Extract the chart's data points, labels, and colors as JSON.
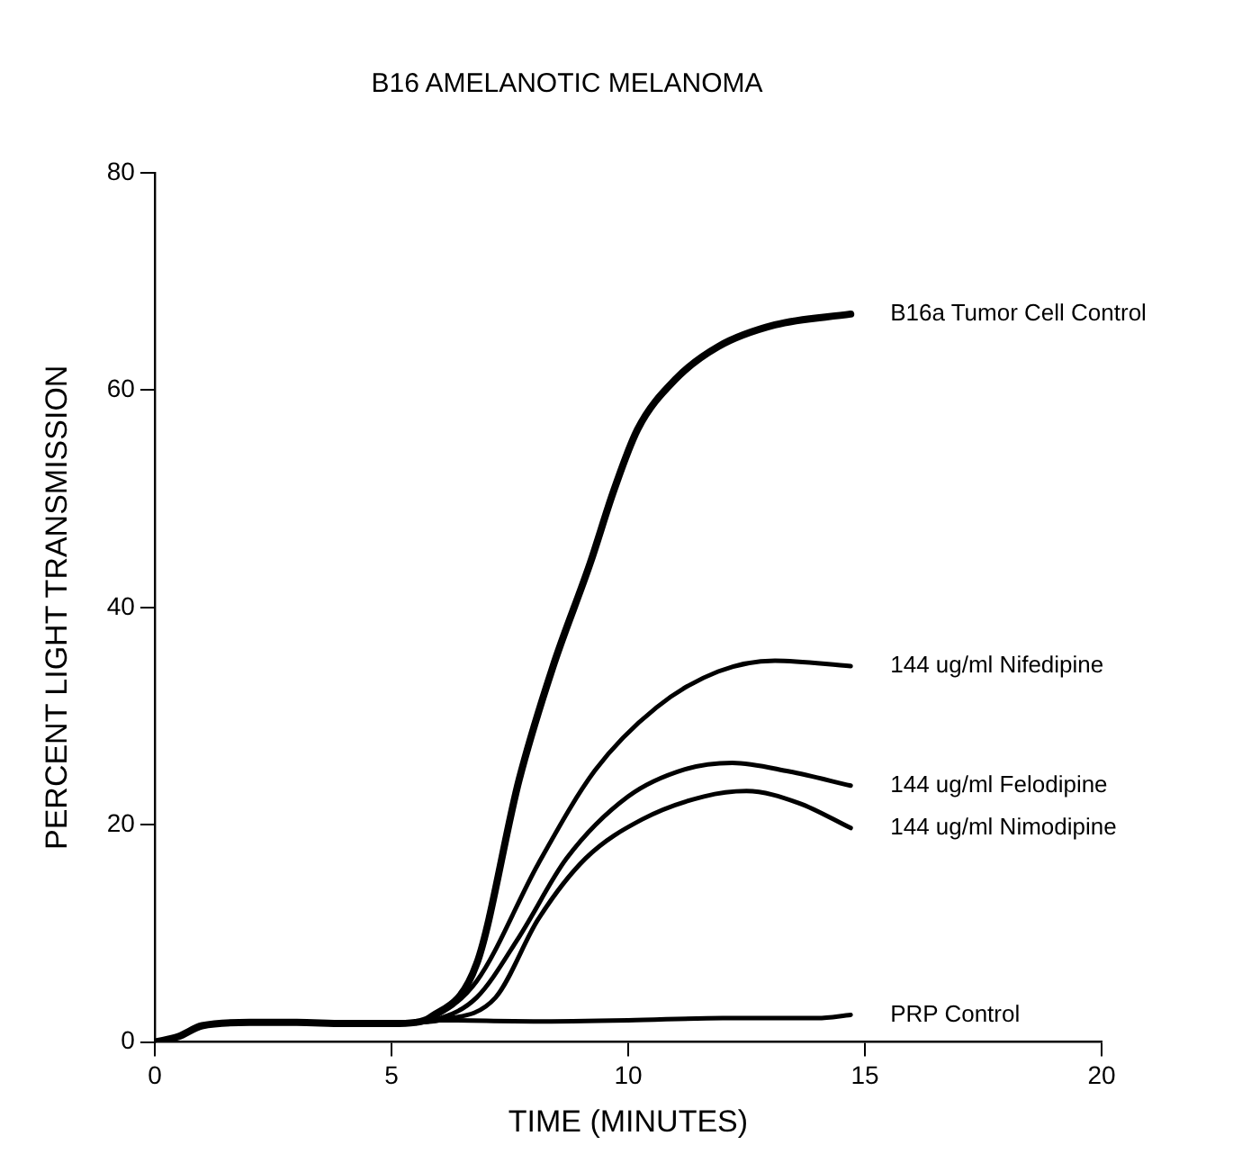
{
  "chart_data": {
    "type": "line",
    "title": "B16 AMELANOTIC MELANOMA",
    "xlabel": "TIME (MINUTES)",
    "ylabel": "PERCENT LIGHT TRANSMISSION",
    "xlim": [
      0,
      20
    ],
    "xticks": [
      0,
      5,
      10,
      15,
      20
    ],
    "ylim": [
      0,
      80
    ],
    "yticks": [
      0,
      20,
      40,
      60,
      80
    ],
    "grid": false,
    "legend": false,
    "marker": "none",
    "line_style": "solid",
    "series": [
      {
        "name": "B16a Tumor Cell Control",
        "color": "#000000",
        "x": [
          0,
          0.5,
          1,
          2,
          3,
          4,
          5,
          5.5,
          5.8,
          6.8,
          7.7,
          8.4,
          9.2,
          9.7,
          10.2,
          11,
          11.9,
          13.1,
          14.7
        ],
        "values": [
          0,
          0.5,
          1.5,
          1.8,
          1.8,
          1.7,
          1.7,
          1.8,
          2.2,
          7.2,
          24.2,
          34.4,
          44.1,
          50.8,
          56.4,
          61,
          64,
          66,
          67
        ]
      },
      {
        "name": "144 ug/ml Nifedipine",
        "color": "#000000",
        "x": [
          0,
          0.5,
          1,
          2,
          3,
          4,
          5,
          5.5,
          5.8,
          6.8,
          8.1,
          9.3,
          10.6,
          11.9,
          13.1,
          14.7
        ],
        "values": [
          0,
          0.5,
          1.5,
          1.8,
          1.8,
          1.7,
          1.7,
          1.8,
          2.1,
          5.6,
          16.4,
          25,
          30.8,
          34.1,
          35.1,
          34.6
        ]
      },
      {
        "name": "144 ug/ml Felodipine",
        "color": "#000000",
        "x": [
          0,
          0.5,
          1,
          2,
          3,
          4,
          5,
          5.5,
          5.9,
          6.8,
          7.7,
          8.7,
          10,
          11.2,
          12.2,
          13.4,
          14.7
        ],
        "values": [
          0,
          0.5,
          1.5,
          1.8,
          1.8,
          1.7,
          1.7,
          1.8,
          2,
          4.1,
          9.7,
          16.9,
          22.6,
          25.1,
          25.7,
          24.9,
          23.6
        ]
      },
      {
        "name": "144 ug/ml Nimodipine",
        "color": "#000000",
        "x": [
          0,
          0.5,
          1,
          2,
          3,
          4,
          5,
          5.5,
          6,
          7.2,
          8.1,
          9.1,
          10.3,
          11.6,
          12.5,
          13.6,
          14.7
        ],
        "values": [
          0,
          0.5,
          1.5,
          1.8,
          1.8,
          1.7,
          1.7,
          1.8,
          2,
          4.1,
          11.3,
          16.9,
          20.5,
          22.6,
          23.1,
          22,
          19.7
        ]
      },
      {
        "name": "PRP Control",
        "color": "#000000",
        "x": [
          0,
          0.5,
          1,
          2,
          3,
          4,
          5,
          5.5,
          6,
          8,
          10,
          12,
          14,
          14.7
        ],
        "values": [
          0,
          0.5,
          1.5,
          1.8,
          1.8,
          1.7,
          1.7,
          1.8,
          2,
          1.9,
          2,
          2.2,
          2.2,
          2.5
        ]
      }
    ]
  }
}
